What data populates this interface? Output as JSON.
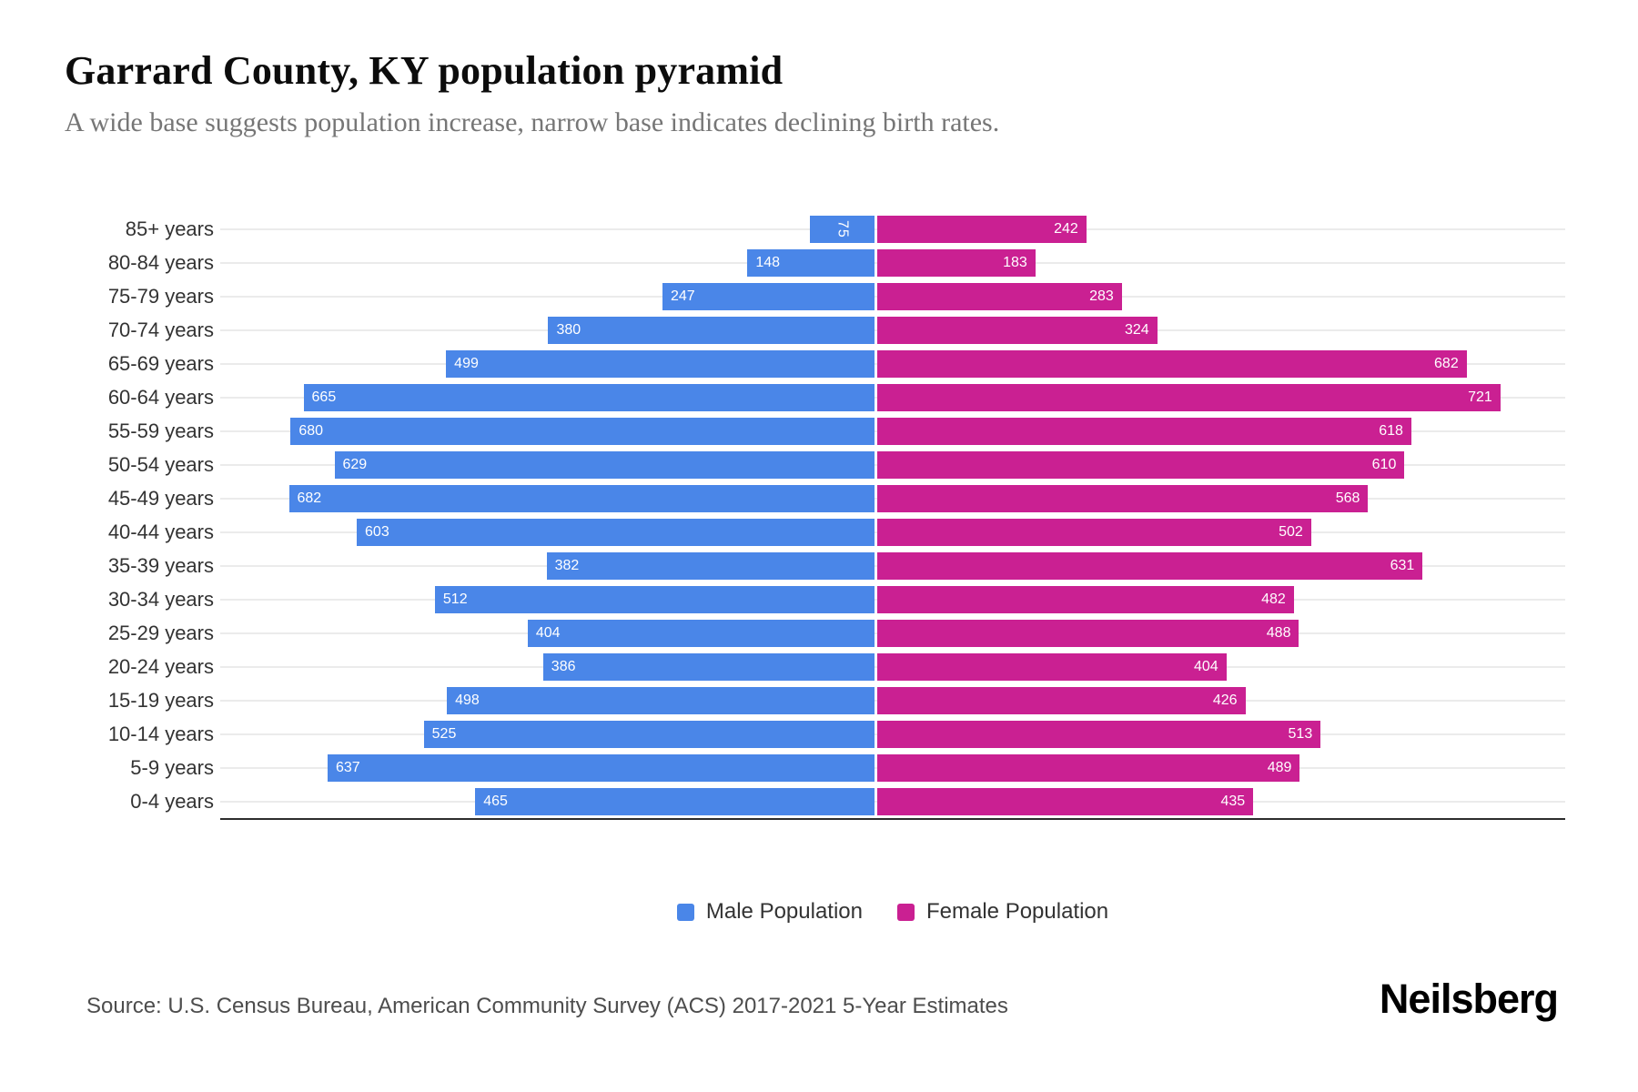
{
  "header": {
    "title": "Garrard County, KY population pyramid",
    "subtitle": "A wide base suggests population increase, narrow base indicates declining birth rates."
  },
  "chart_data": {
    "type": "bar",
    "variant": "population-pyramid",
    "title": "Garrard County, KY population pyramid",
    "categories": [
      "85+ years",
      "80-84 years",
      "75-79 years",
      "70-74 years",
      "65-69 years",
      "60-64 years",
      "55-59 years",
      "50-54 years",
      "45-49 years",
      "40-44 years",
      "35-39 years",
      "30-34 years",
      "25-29 years",
      "20-24 years",
      "15-19 years",
      "10-14 years",
      "5-9 years",
      "0-4 years"
    ],
    "series": [
      {
        "name": "Male Population",
        "side": "left",
        "color": "#4a86e8",
        "axis_max": 762,
        "values": [
          75,
          148,
          247,
          380,
          499,
          665,
          680,
          629,
          682,
          603,
          382,
          512,
          404,
          386,
          498,
          525,
          637,
          465
        ]
      },
      {
        "name": "Female Population",
        "side": "right",
        "color": "#ca2092",
        "axis_max": 796,
        "values": [
          242,
          183,
          283,
          324,
          682,
          721,
          618,
          610,
          568,
          502,
          631,
          482,
          488,
          404,
          426,
          513,
          489,
          435
        ]
      }
    ],
    "xlabel": "",
    "ylabel": "",
    "grid": true,
    "value_labels": "inside outer end, white",
    "legend_position": "bottom-center"
  },
  "legend": {
    "items": [
      {
        "label": "Male Population",
        "color": "#4a86e8"
      },
      {
        "label": "Female Population",
        "color": "#ca2092"
      }
    ]
  },
  "footer": {
    "source": "Source: U.S. Census Bureau, American Community Survey (ACS) 2017-2021 5-Year Estimates",
    "brand": "Neilsberg"
  }
}
